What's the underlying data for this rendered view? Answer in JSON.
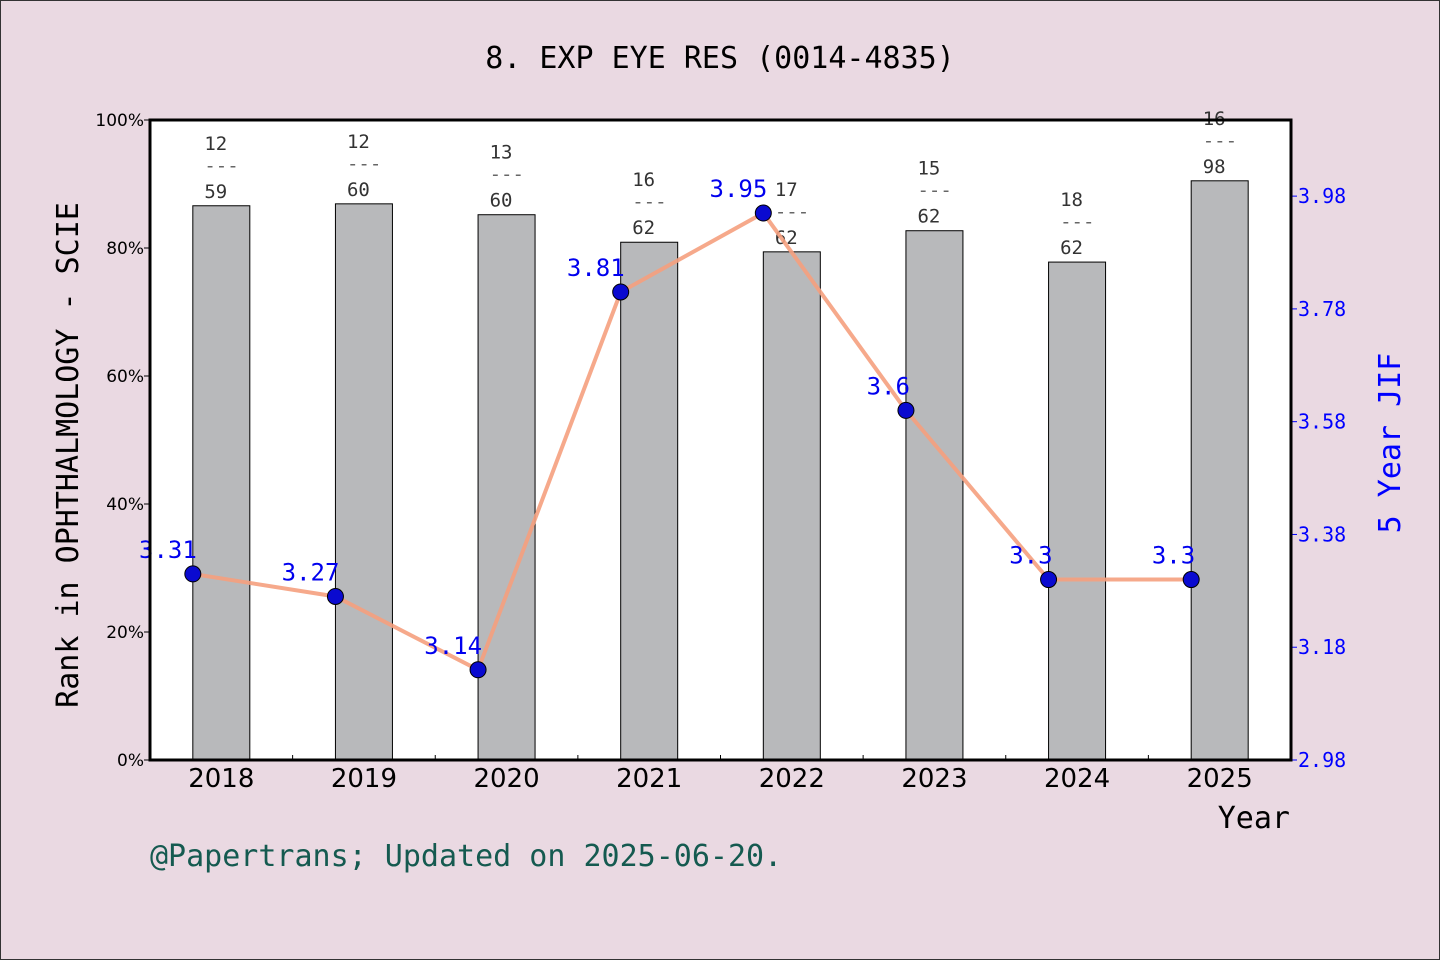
{
  "chart_data": {
    "type": "bar+line",
    "title": "8. EXP EYE RES (0014-4835)",
    "xlabel": "Year",
    "ylabel": "Rank in OPHTHALMOLOGY - SCIE",
    "y2label": "5 Year JIF",
    "categories": [
      "2018",
      "2019",
      "2020",
      "2021",
      "2022",
      "2023",
      "2024",
      "2025"
    ],
    "ylim": [
      0,
      100
    ],
    "yticks": [
      "0%",
      "20%",
      "40%",
      "60%",
      "80%",
      "100%"
    ],
    "y2lim": [
      2.98,
      4.115
    ],
    "y2ticks": [
      "2.98",
      "3.18",
      "3.38",
      "3.58",
      "3.78",
      "3.98"
    ],
    "bar_series": {
      "values": [
        86.6,
        86.9,
        85.2,
        80.9,
        79.4,
        82.7,
        77.8,
        90.5
      ],
      "color": "#b8b9bb"
    },
    "rank_labels": [
      {
        "rank": "12",
        "total": "59"
      },
      {
        "rank": "12",
        "total": "60"
      },
      {
        "rank": "13",
        "total": "60"
      },
      {
        "rank": "16",
        "total": "62"
      },
      {
        "rank": "17",
        "total": "62"
      },
      {
        "rank": "15",
        "total": "62"
      },
      {
        "rank": "18",
        "total": "62"
      },
      {
        "rank": "16",
        "total": "98"
      }
    ],
    "line_series": {
      "values": [
        3.31,
        3.27,
        3.14,
        3.81,
        3.95,
        3.6,
        3.3,
        3.3
      ],
      "labels": [
        "3.31",
        "3.27",
        "3.14",
        "3.81",
        "3.95",
        "3.6",
        "3.3",
        "3.3"
      ],
      "line_color": "#f5a07e",
      "marker_color": "#0a0ad0"
    },
    "grid": false
  },
  "footer": "@Papertrans; Updated on 2025-06-20."
}
